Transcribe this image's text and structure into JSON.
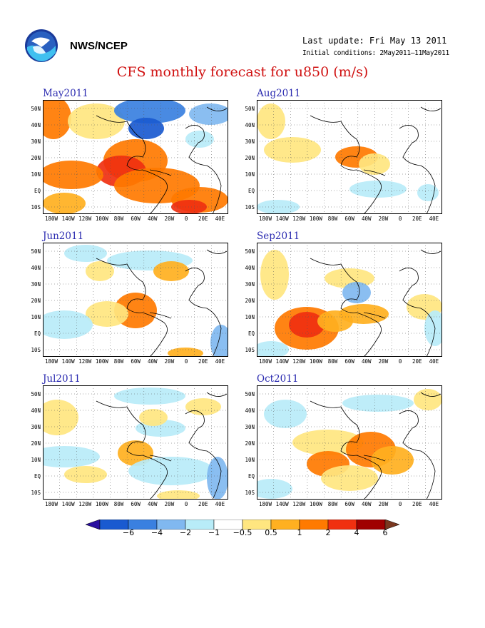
{
  "header": {
    "org": "NWS/NCEP",
    "last_update": "Last update: Fri May 13 2011",
    "initial_conditions": "Initial conditions: 2May2011–11May2011",
    "title": "CFS monthly forecast for u850 (m/s)"
  },
  "axes": {
    "lat_labels": [
      "50N",
      "40N",
      "30N",
      "20N",
      "10N",
      "EQ",
      "10S"
    ],
    "lon_labels": [
      "180W",
      "140W",
      "120W",
      "100W",
      "80W",
      "60W",
      "40W",
      "20W",
      "0",
      "20E",
      "40E"
    ]
  },
  "panels": [
    {
      "title": "May2011"
    },
    {
      "title": "Aug2011"
    },
    {
      "title": "Jun2011"
    },
    {
      "title": "Sep2011"
    },
    {
      "title": "Jul2011"
    },
    {
      "title": "Oct2011"
    }
  ],
  "colorbar": {
    "labels": [
      "−6",
      "−4",
      "−2",
      "−1",
      "−0.5",
      "0.5",
      "1",
      "2",
      "4",
      "6"
    ],
    "colors": [
      "#2a10a0",
      "#1a5ad0",
      "#3a80e0",
      "#80b8f0",
      "#b8ecf8",
      "#ffffff",
      "#ffe680",
      "#ffb020",
      "#ff7a00",
      "#f03010",
      "#a00000",
      "#7a3820"
    ]
  }
}
